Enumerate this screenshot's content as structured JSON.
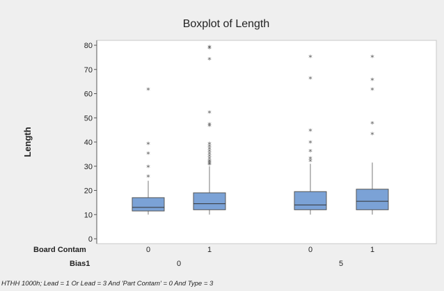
{
  "chart_data": {
    "type": "boxplot",
    "title": "Boxplot of Length",
    "ylabel": "Length",
    "ylim": [
      0,
      80
    ],
    "yticks": [
      0,
      10,
      20,
      30,
      40,
      50,
      60,
      70,
      80
    ],
    "box_color": "#7ba2d6",
    "factors": [
      {
        "name": "Board Contam",
        "levels": [
          "0",
          "1",
          "0",
          "1"
        ]
      },
      {
        "name": "Bias1",
        "levels": [
          "0",
          "5"
        ]
      }
    ],
    "groups": [
      {
        "board_contam": "0",
        "bias1": "0",
        "min": 10,
        "q1": 11.5,
        "median": 13,
        "q3": 17,
        "max": 24,
        "outliers": [
          25.5,
          29.5,
          35,
          39,
          61.5
        ]
      },
      {
        "board_contam": "1",
        "bias1": "0",
        "min": 10,
        "q1": 12,
        "median": 14.5,
        "q3": 19,
        "max": 30,
        "outliers": [
          30.5,
          31,
          31.5,
          32,
          33,
          34,
          35,
          36,
          37,
          38,
          39,
          46.5,
          47,
          52,
          74,
          78.5,
          79
        ]
      },
      {
        "board_contam": "0",
        "bias1": "5",
        "min": 10,
        "q1": 12,
        "median": 14,
        "q3": 19.5,
        "max": 31,
        "outliers": [
          32,
          33,
          36,
          39.5,
          44.5,
          66,
          75
        ]
      },
      {
        "board_contam": "1",
        "bias1": "5",
        "min": 10,
        "q1": 12,
        "median": 15.5,
        "q3": 20.5,
        "max": 31.5,
        "outliers": [
          43,
          47.5,
          61.5,
          65.5,
          75
        ]
      }
    ],
    "footnote": "HTHH 1000h; Lead = 1 Or Lead = 3 And 'Part Contam' = 0 And Type = 3"
  }
}
